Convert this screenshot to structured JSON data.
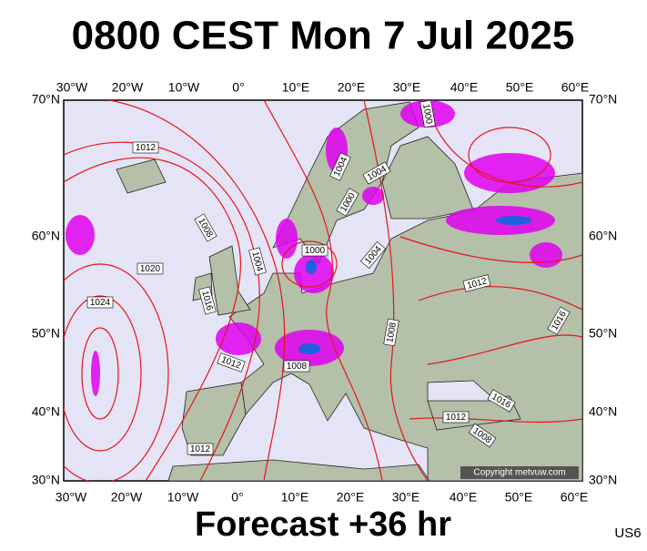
{
  "header": {
    "title": "0800 CEST Mon 7 Jul 2025"
  },
  "map": {
    "lon_labels": [
      "30°W",
      "20°W",
      "10°W",
      "0°",
      "10°E",
      "20°E",
      "30°E",
      "40°E",
      "50°E",
      "60°E"
    ],
    "lat_labels": [
      "70°N",
      "60°N",
      "50°N",
      "40°N",
      "30°N"
    ],
    "isobar_labels": [
      "1012",
      "1008",
      "1020",
      "1024",
      "1016",
      "1012",
      "1008",
      "1004",
      "1000",
      "1004",
      "1000",
      "1004",
      "1004",
      "1000",
      "1008",
      "1012",
      "1016",
      "1016",
      "1012",
      "1008",
      "1012"
    ],
    "copyright": "Copyright metvuw.com"
  },
  "footer": {
    "forecast": "Forecast +36 hr",
    "code": "US6"
  }
}
